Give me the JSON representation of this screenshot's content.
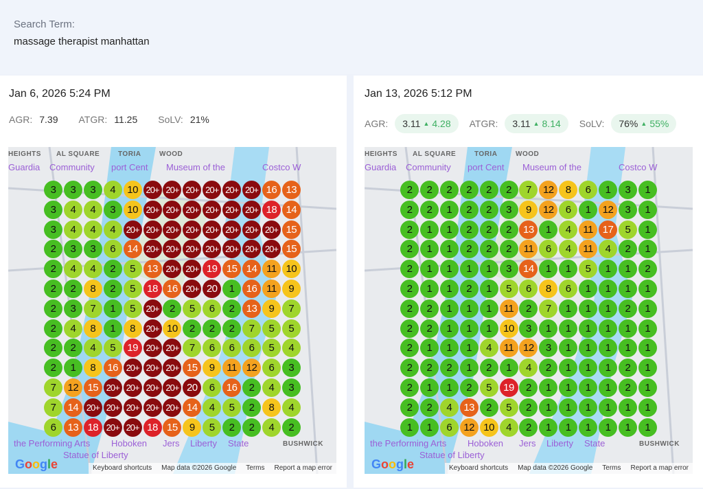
{
  "search": {
    "label": "Search Term:",
    "value": "massage therapist manhattan"
  },
  "colors": {
    "green": "#47be22",
    "lightgreen": "#9fd52c",
    "yellow": "#f6c41c",
    "orange": "#f4a21f",
    "darkorange": "#e6621a",
    "red": "#dd2229",
    "darkred": "#8a0b0e",
    "delta": "#3fb063",
    "pill": "#e9f6ee"
  },
  "map": {
    "labels": [
      "Museum of the",
      "Costco W",
      "the Performing Arts",
      "HEIGHTS",
      "Guardia",
      "Community",
      "Hoboken",
      "Jers",
      "Liberty",
      "State",
      "Statue of Liberty",
      "BUSHWICK",
      "WOOD",
      "TORIA",
      "AL SQUARE",
      "port Cent"
    ],
    "footer": [
      "Keyboard shortcuts",
      "Map data ©2026 Google",
      "Terms",
      "Report a map error"
    ],
    "logo": "Google"
  },
  "reports": [
    {
      "date": "Jan 6, 2026 5:24 PM",
      "metrics": [
        {
          "label": "AGR:",
          "value": "7.39"
        },
        {
          "label": "ATGR:",
          "value": "11.25"
        },
        {
          "label": "SoLV:",
          "value": "21%"
        }
      ],
      "grid": [
        [
          "3",
          "3",
          "3",
          "4",
          "10",
          "20+",
          "20+",
          "20+",
          "20+",
          "20+",
          "20+",
          "16",
          "13"
        ],
        [
          "3",
          "4",
          "4",
          "3",
          "10",
          "20+",
          "20+",
          "20+",
          "20+",
          "20+",
          "20+",
          "18",
          "14"
        ],
        [
          "3",
          "4",
          "4",
          "4",
          "20+",
          "20+",
          "20+",
          "20+",
          "20+",
          "20+",
          "20+",
          "20+",
          "15"
        ],
        [
          "2",
          "3",
          "3",
          "6",
          "14",
          "20+",
          "20+",
          "20+",
          "20+",
          "20+",
          "20+",
          "20+",
          "15"
        ],
        [
          "2",
          "4",
          "4",
          "2",
          "5",
          "13",
          "20+",
          "20+",
          "19",
          "15",
          "14",
          "11",
          "10"
        ],
        [
          "2",
          "2",
          "8",
          "2",
          "5",
          "18",
          "16",
          "20+",
          "20",
          "1",
          "16",
          "11",
          "9"
        ],
        [
          "2",
          "3",
          "7",
          "1",
          "5",
          "20+",
          "2",
          "5",
          "6",
          "2",
          "13",
          "9",
          "7"
        ],
        [
          "2",
          "4",
          "8",
          "1",
          "8",
          "20+",
          "10",
          "2",
          "2",
          "2",
          "7",
          "5",
          "5"
        ],
        [
          "2",
          "2",
          "4",
          "5",
          "19",
          "20+",
          "20+",
          "7",
          "6",
          "6",
          "6",
          "5",
          "4"
        ],
        [
          "2",
          "1",
          "8",
          "16",
          "20+",
          "20+",
          "20+",
          "15",
          "9",
          "11",
          "12",
          "6",
          "3"
        ],
        [
          "7",
          "12",
          "15",
          "20+",
          "20+",
          "20+",
          "20+",
          "20",
          "6",
          "16",
          "2",
          "4",
          "3"
        ],
        [
          "7",
          "14",
          "20+",
          "20+",
          "20+",
          "20+",
          "20+",
          "14",
          "4",
          "5",
          "2",
          "8",
          "4"
        ],
        [
          "6",
          "13",
          "18",
          "20+",
          "20+",
          "18",
          "15",
          "9",
          "5",
          "2",
          "2",
          "4",
          "2"
        ]
      ]
    },
    {
      "date": "Jan 13, 2026 5:12 PM",
      "metrics": [
        {
          "label": "AGR:",
          "value": "3.11",
          "delta": "4.28"
        },
        {
          "label": "ATGR:",
          "value": "3.11",
          "delta": "8.14"
        },
        {
          "label": "SoLV:",
          "value": "76%",
          "delta": "55%"
        }
      ],
      "grid": [
        [
          "2",
          "2",
          "2",
          "2",
          "2",
          "2",
          "7",
          "12",
          "8",
          "6",
          "1",
          "3",
          "1"
        ],
        [
          "2",
          "2",
          "1",
          "2",
          "2",
          "3",
          "9",
          "12",
          "6",
          "1",
          "12",
          "3",
          "1"
        ],
        [
          "2",
          "1",
          "1",
          "2",
          "2",
          "2",
          "13",
          "1",
          "4",
          "11",
          "17",
          "5",
          "1"
        ],
        [
          "2",
          "1",
          "1",
          "2",
          "2",
          "2",
          "11",
          "6",
          "4",
          "11",
          "4",
          "2",
          "1"
        ],
        [
          "2",
          "1",
          "1",
          "1",
          "1",
          "3",
          "14",
          "1",
          "1",
          "5",
          "1",
          "1",
          "2"
        ],
        [
          "2",
          "1",
          "1",
          "2",
          "1",
          "5",
          "6",
          "8",
          "6",
          "1",
          "1",
          "1",
          "1"
        ],
        [
          "2",
          "2",
          "1",
          "1",
          "1",
          "11",
          "2",
          "7",
          "1",
          "1",
          "1",
          "2",
          "1"
        ],
        [
          "2",
          "2",
          "1",
          "1",
          "1",
          "10",
          "3",
          "1",
          "1",
          "1",
          "1",
          "1",
          "1"
        ],
        [
          "2",
          "1",
          "1",
          "1",
          "4",
          "11",
          "12",
          "3",
          "1",
          "1",
          "1",
          "1",
          "1"
        ],
        [
          "2",
          "2",
          "2",
          "1",
          "2",
          "1",
          "4",
          "2",
          "1",
          "1",
          "1",
          "2",
          "1"
        ],
        [
          "2",
          "1",
          "1",
          "2",
          "5",
          "19",
          "2",
          "1",
          "1",
          "1",
          "1",
          "2",
          "1"
        ],
        [
          "2",
          "2",
          "4",
          "13",
          "2",
          "5",
          "2",
          "1",
          "1",
          "1",
          "1",
          "1",
          "1"
        ],
        [
          "1",
          "1",
          "6",
          "12",
          "10",
          "4",
          "2",
          "1",
          "1",
          "1",
          "1",
          "1",
          "1"
        ]
      ]
    }
  ]
}
